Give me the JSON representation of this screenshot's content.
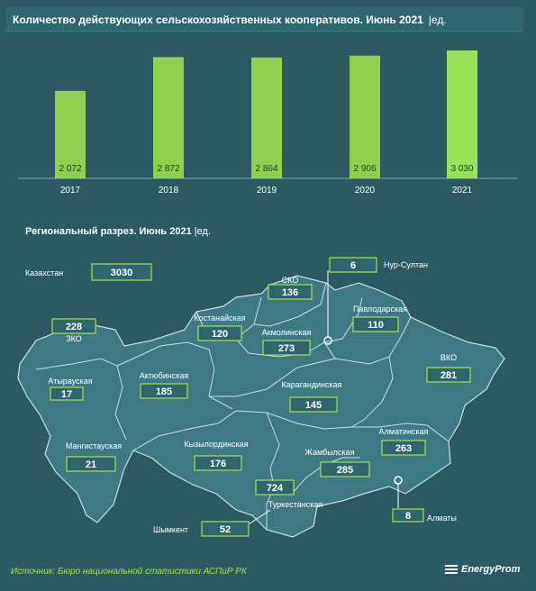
{
  "header": {
    "title": "Количество действующих сельскохозяйственных кооперативов. Июнь 2021",
    "unit": "|ед."
  },
  "chart_data": [
    {
      "type": "bar",
      "title": "Количество действующих сельскохозяйственных кооперативов. Июнь 2021",
      "ylabel": "",
      "xlabel": "",
      "categories": [
        "2017",
        "2018",
        "2019",
        "2020",
        "2021"
      ],
      "values": [
        2072,
        2872,
        2864,
        2906,
        3030
      ],
      "value_labels": [
        "2 072",
        "2 872",
        "2 864",
        "2 906",
        "3 030"
      ],
      "ylim": [
        0,
        3200
      ],
      "grid": false,
      "colors": {
        "bar": "#8fd14f",
        "bar_highlight": "#9be05a"
      }
    },
    {
      "type": "table",
      "title": "Региональный разрез. Июнь 2021",
      "unit": "|ед.",
      "rows": [
        {
          "region": "Казахстан",
          "value": "3030"
        },
        {
          "region": "Нур-Султан",
          "value": "6"
        },
        {
          "region": "СКО",
          "value": "136"
        },
        {
          "region": "Павлодарская",
          "value": "110"
        },
        {
          "region": "Костанайская",
          "value": "120"
        },
        {
          "region": "Акмолинская",
          "value": "273"
        },
        {
          "region": "ЗКО",
          "value": "228"
        },
        {
          "region": "ВКО",
          "value": "281"
        },
        {
          "region": "Атырауская",
          "value": "17"
        },
        {
          "region": "Актюбинская",
          "value": "185"
        },
        {
          "region": "Карагандинская",
          "value": "145"
        },
        {
          "region": "Мангистауская",
          "value": "21"
        },
        {
          "region": "Кызылординская",
          "value": "176"
        },
        {
          "region": "Алматинская",
          "value": "263"
        },
        {
          "region": "Жамбылская",
          "value": "285"
        },
        {
          "region": "Туркестанская",
          "value": "724"
        },
        {
          "region": "Шымкент",
          "value": "52"
        },
        {
          "region": "Алматы",
          "value": "8"
        }
      ]
    }
  ],
  "footer": {
    "source": "Источник: Бюро национальной статистики АСПиР РК",
    "brand": "EnergyProm"
  }
}
